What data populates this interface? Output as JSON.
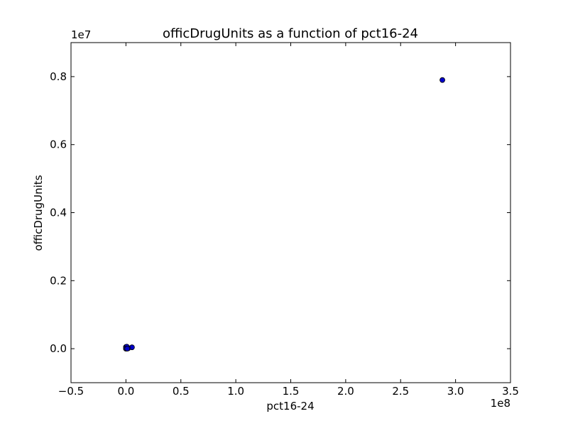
{
  "chart_data": {
    "type": "scatter",
    "title": "officDrugUnits as a function of pct16-24",
    "xlabel": "pct16-24",
    "ylabel": "officDrugUnits",
    "x_offset_label": "1e8",
    "y_offset_label": "1e7",
    "xlim": [
      -0.5,
      3.5
    ],
    "ylim": [
      -0.1,
      0.9
    ],
    "x_ticks": [
      -0.5,
      0.0,
      0.5,
      1.0,
      1.5,
      2.0,
      2.5,
      3.0,
      3.5
    ],
    "x_tick_labels": [
      "−0.5",
      "0.0",
      "0.5",
      "1.0",
      "1.5",
      "2.0",
      "2.5",
      "3.0",
      "3.5"
    ],
    "y_ticks": [
      0.0,
      0.2,
      0.4,
      0.6,
      0.8
    ],
    "y_tick_labels": [
      "0.0",
      "0.2",
      "0.4",
      "0.6",
      "0.8"
    ],
    "grid": false,
    "marker_color": "#0000cc",
    "marker_edge_color": "#000000",
    "points": [
      {
        "x": 2.88,
        "y": 0.79
      },
      {
        "x": 0.055,
        "y": 0.004
      },
      {
        "x": 0.0,
        "y": 0.0
      },
      {
        "x": 0.005,
        "y": 0.001
      },
      {
        "x": 0.01,
        "y": 0.002
      },
      {
        "x": 0.015,
        "y": 0.003
      },
      {
        "x": 0.0,
        "y": 0.005
      },
      {
        "x": 0.02,
        "y": 0.001
      },
      {
        "x": 0.008,
        "y": 0.006
      },
      {
        "x": 0.003,
        "y": 0.0
      },
      {
        "x": 0.012,
        "y": 0.0
      }
    ]
  }
}
